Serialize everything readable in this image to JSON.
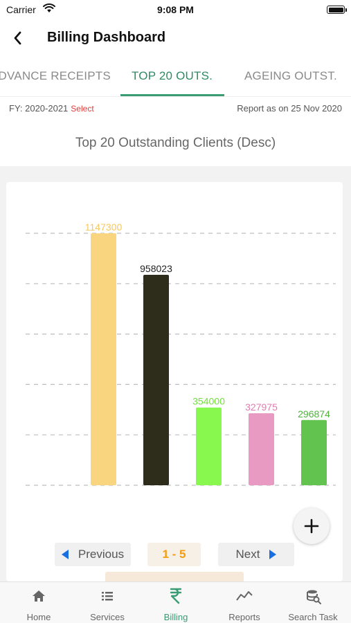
{
  "status_bar": {
    "carrier": "Carrier",
    "time": "9:08 PM"
  },
  "nav": {
    "title": "Billing Dashboard"
  },
  "tabs": [
    {
      "label": "ADVANCE RECEIPTS"
    },
    {
      "label": "TOP 20 OUTS."
    },
    {
      "label": "AGEING OUTST."
    }
  ],
  "fy": {
    "label": "FY: 2020-2021",
    "select": "Select",
    "report_date": "Report as on 25 Nov 2020"
  },
  "section_title": "Top 20 Outstanding Clients (Desc)",
  "chart_data": {
    "type": "bar",
    "values": [
      1147300,
      958023,
      354000,
      327975,
      296874
    ],
    "labels": [
      "1147300",
      "958023",
      "354000",
      "327975",
      "296874"
    ],
    "colors": [
      "#fad580",
      "#2e2d1c",
      "#88f84f",
      "#e89ac3",
      "#62c34f"
    ],
    "label_colors": [
      "#f6c85f",
      "#222222",
      "#72e23b",
      "#e07ab0",
      "#4fb33c"
    ],
    "ylim": [
      0,
      1147300
    ],
    "grid": true
  },
  "pager": {
    "prev": "Previous",
    "range": "1 - 5",
    "next": "Next"
  },
  "colors": {
    "accent": "#3a9c73",
    "select": "#e53935",
    "arrow": "#1a6fe0"
  },
  "bottom_tabs": [
    {
      "label": "Home",
      "icon": "home-icon"
    },
    {
      "label": "Services",
      "icon": "list-icon"
    },
    {
      "label": "Billing",
      "icon": "rupee-icon"
    },
    {
      "label": "Reports",
      "icon": "trend-icon"
    },
    {
      "label": "Search Task",
      "icon": "database-search-icon"
    }
  ]
}
